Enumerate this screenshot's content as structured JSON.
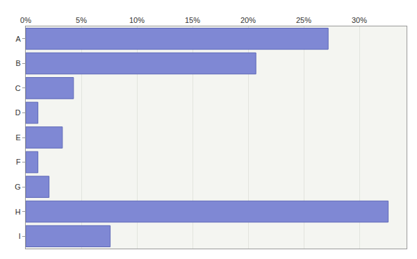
{
  "chart_data": {
    "type": "bar",
    "orientation": "horizontal",
    "categories": [
      "A",
      "B",
      "C",
      "D",
      "E",
      "F",
      "G",
      "H",
      "I"
    ],
    "values": [
      27.2,
      20.7,
      4.3,
      1.1,
      3.3,
      1.1,
      2.1,
      32.6,
      7.6
    ],
    "color": "#7f88d4",
    "xlim": [
      0,
      34.25
    ],
    "xticks": [
      {
        "value": 0,
        "label": "0%"
      },
      {
        "value": 5,
        "label": "5%"
      },
      {
        "value": 10,
        "label": "10%"
      },
      {
        "value": 15,
        "label": "15%"
      },
      {
        "value": 20,
        "label": "20%"
      },
      {
        "value": 25,
        "label": "25%"
      },
      {
        "value": 30,
        "label": "30%"
      }
    ],
    "grid": true
  }
}
